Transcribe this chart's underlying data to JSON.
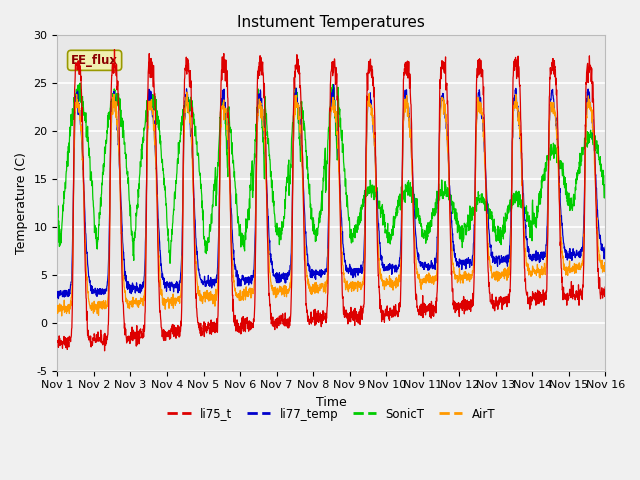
{
  "title": "Instument Temperatures",
  "xlabel": "Time",
  "ylabel": "Temperature (C)",
  "ylim": [
    -5,
    30
  ],
  "xlim_days": [
    0,
    15
  ],
  "xtick_labels": [
    "Nov 1",
    "Nov 2",
    "Nov 3",
    "Nov 4",
    "Nov 5",
    "Nov 6",
    "Nov 7",
    "Nov 8",
    "Nov 9",
    "Nov 10",
    "Nov 11",
    "Nov 12",
    "Nov 13",
    "Nov 14",
    "Nov 15",
    "Nov 16"
  ],
  "annotation": "EE_flux",
  "series_colors": {
    "li75_t": "#dd0000",
    "li77_temp": "#0000cc",
    "SonicT": "#00cc00",
    "AirT": "#ff9900"
  },
  "legend_labels": [
    "li75_t",
    "li77_temp",
    "SonicT",
    "AirT"
  ],
  "plot_bg_color": "#e8e8e8",
  "grid_color": "#ffffff",
  "title_fontsize": 11,
  "axis_fontsize": 9,
  "tick_fontsize": 8
}
